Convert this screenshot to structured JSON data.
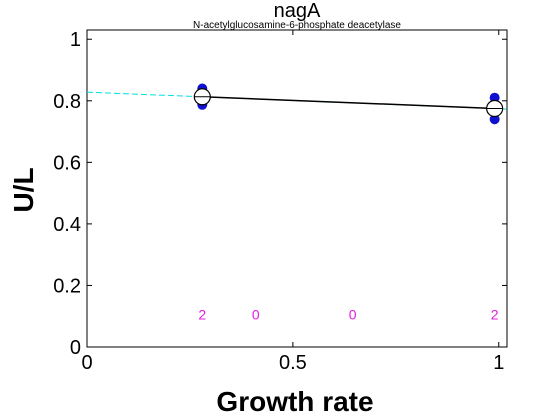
{
  "chart_data": {
    "type": "scatter",
    "title": "nagA",
    "subtitle": "N-acetylglucosamine-6-phosphate deacetylase",
    "xlabel": "Growth rate",
    "ylabel": "U/L",
    "xlim": [
      0,
      1.02
    ],
    "ylim": [
      0,
      1.03
    ],
    "xticks": [
      "0",
      "0.5",
      "1"
    ],
    "yticks": [
      "0",
      "0.2",
      "0.4",
      "0.6",
      "0.8",
      "1"
    ],
    "xtick_values": [
      0,
      0.5,
      1
    ],
    "ytick_values": [
      0,
      0.2,
      0.4,
      0.6,
      0.8,
      1
    ],
    "grid": false,
    "points": [
      {
        "x": 0.28,
        "y": 0.84
      },
      {
        "x": 0.28,
        "y": 0.787
      },
      {
        "x": 0.99,
        "y": 0.81
      },
      {
        "x": 0.99,
        "y": 0.74
      }
    ],
    "means": [
      {
        "x": 0.28,
        "y": 0.813
      },
      {
        "x": 0.99,
        "y": 0.775
      }
    ],
    "fit_line": {
      "x": [
        0,
        1.02
      ],
      "y": [
        0.828,
        0.773
      ]
    },
    "counts": [
      {
        "x": 0.28,
        "label": "2"
      },
      {
        "x": 0.41,
        "label": "0"
      },
      {
        "x": 0.645,
        "label": "0"
      },
      {
        "x": 0.99,
        "label": "2"
      }
    ],
    "count_y": 0.105,
    "colors": {
      "points": "#1010d0",
      "fit": "#00e0e0",
      "mean_line": "#000000",
      "counts": "#e020e0"
    }
  }
}
